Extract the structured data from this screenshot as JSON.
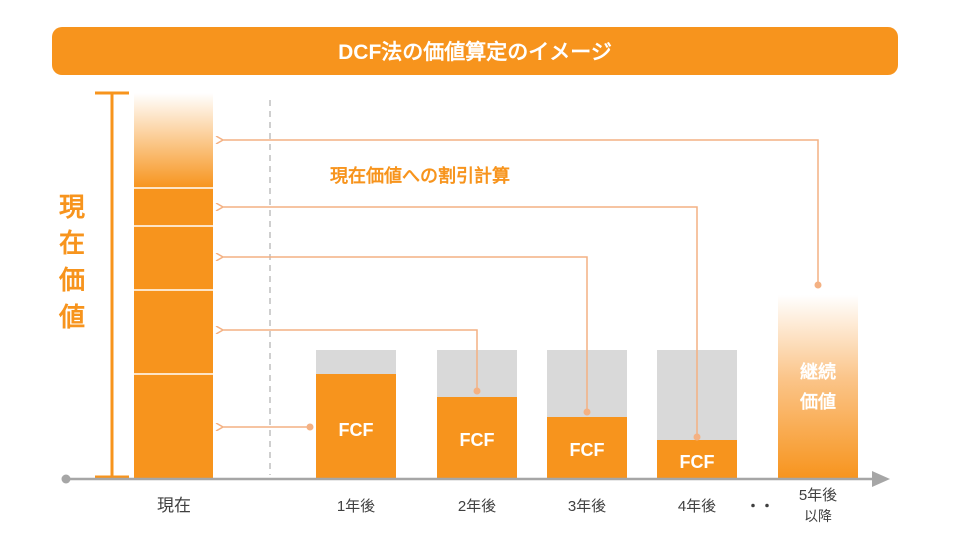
{
  "title": "DCF法の価値算定のイメージ",
  "present_value_label": [
    "現",
    "在",
    "価",
    "値"
  ],
  "discount_label": "現在価値への割引計算",
  "bar_label": "FCF",
  "terminal_label": [
    "継続",
    "価値"
  ],
  "x_labels": {
    "present": "現在",
    "y1": "1年後",
    "y2": "2年後",
    "y3": "3年後",
    "y4": "4年後",
    "ellipsis": "・・",
    "y5_line1": "5年後",
    "y5_line2": "以降"
  },
  "colors": {
    "accent": "#f7941d",
    "line": "#f4b183",
    "gray": "#d9d9d9",
    "axis": "#a6a6a6"
  }
}
